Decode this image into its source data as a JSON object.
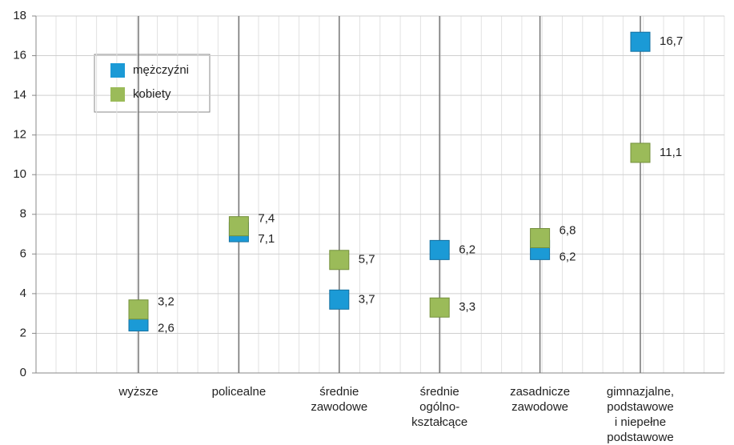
{
  "chart_data": {
    "type": "dot",
    "categories": [
      "wyższe",
      "policealne",
      "średnie\nzawodowe",
      "średnie\nogólno-\nkształcące",
      "zasadnicze\nzawodowe",
      "gimnazjalne,\npodstawowe\ni niepełne\npodstawowe"
    ],
    "series": [
      {
        "name": "mężczyźni",
        "color": "#1b9ad6",
        "values": [
          2.6,
          7.1,
          3.7,
          6.2,
          6.2,
          16.7
        ],
        "value_labels": [
          "2,6",
          "7,1",
          "3,7",
          "6,2",
          "6,2",
          "16,7"
        ]
      },
      {
        "name": "kobiety",
        "color": "#9bbb59",
        "values": [
          3.2,
          7.4,
          5.7,
          3.3,
          6.8,
          11.1
        ],
        "value_labels": [
          "3,2",
          "7,4",
          "5,7",
          "3,3",
          "6,8",
          "11,1"
        ]
      }
    ],
    "ylim": [
      0,
      18
    ],
    "yticks": [
      0,
      2,
      4,
      6,
      8,
      10,
      12,
      14,
      16,
      18
    ],
    "grid": true,
    "legend": "upper left"
  }
}
